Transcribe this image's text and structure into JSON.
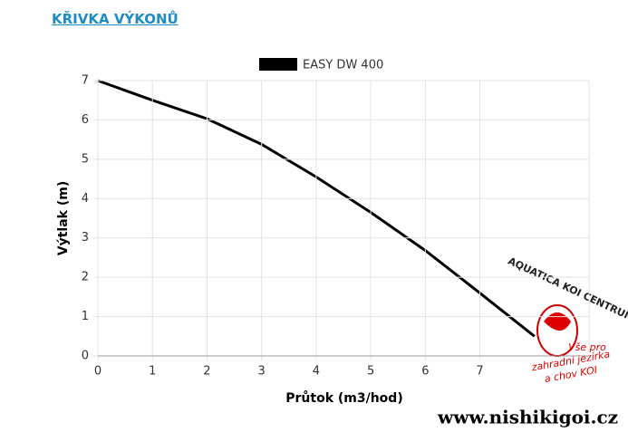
{
  "heading": "KŘIVKA VÝKONŮ",
  "chart_data": {
    "type": "line",
    "x_label": "Průtok (m3/hod)",
    "y_label": "Výtlak (m)",
    "x": [
      0,
      1,
      2,
      3,
      4,
      5,
      6,
      7,
      8
    ],
    "series": [
      {
        "name": "EASY DW 400",
        "color": "#000000",
        "values": [
          7,
          6.5,
          6.03,
          5.38,
          4.55,
          3.65,
          2.68,
          1.6,
          0.5
        ]
      }
    ],
    "xlim": [
      0,
      9
    ],
    "xticks": [
      0,
      1,
      2,
      3,
      4,
      5,
      6,
      7
    ],
    "ylim": [
      0,
      7
    ],
    "yticks": [
      0,
      1,
      2,
      3,
      4,
      5,
      6,
      7
    ],
    "grid": true,
    "legend": "top"
  },
  "watermark": {
    "brand": "AQUATICA KOI CENTRUM",
    "slogan": [
      "Vše pro",
      "zahradní jezírka",
      "a chov KOI"
    ],
    "url": "www.nishikigoi.cz"
  }
}
